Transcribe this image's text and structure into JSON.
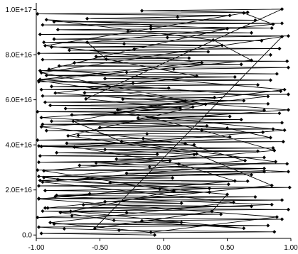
{
  "chart_data": {
    "type": "line",
    "title": "",
    "xlabel": "",
    "ylabel": "",
    "xlim": [
      -1.0,
      1.0
    ],
    "ylim": [
      -1500000000000000.0,
      1.03e+17
    ],
    "x_ticks": [
      {
        "value": -1.0,
        "label": "-1.00"
      },
      {
        "value": -0.5,
        "label": "-0.50"
      },
      {
        "value": 0.0,
        "label": "0.00"
      },
      {
        "value": 0.5,
        "label": "0.50"
      },
      {
        "value": 1.0,
        "label": "1.00"
      }
    ],
    "y_ticks": [
      {
        "value": 0,
        "label": "0.0"
      },
      {
        "value": 2e+16,
        "label": "2.0E+16"
      },
      {
        "value": 4e+16,
        "label": "4.0E+16"
      },
      {
        "value": 6e+16,
        "label": "6.0E+16"
      },
      {
        "value": 8e+16,
        "label": "8.0E+16"
      },
      {
        "value": 1e+17,
        "label": "1.0E+17"
      }
    ],
    "grid": false,
    "legend": "none",
    "line_color": "#000000",
    "marker": "diamond",
    "series": [
      {
        "x": [
          -0.07,
          -0.96,
          0.87,
          -0.35,
          -0.78,
          -0.98,
          0.82,
          -0.86,
          0.14,
          -0.17,
          0.93,
          -0.99,
          -0.72,
          0.45,
          -0.29,
          -0.95,
          0.98,
          -0.93,
          0.69,
          -0.63,
          0.14,
          -0.46,
          0.93,
          -0.98,
          0.72,
          -0.84,
          -0.58,
          0.36,
          -0.93,
          -0.03,
          0.99,
          -0.98,
          0.51,
          -0.42,
          0.66,
          -0.83,
          0.07,
          -0.98,
          0.69,
          -0.29,
          0.79,
          -0.99,
          0.79,
          -0.11,
          -0.66,
          0.97,
          -0.98,
          0.05,
          -0.37,
          0.79,
          -0.97,
          -0.05,
          -0.84,
          0.74,
          -0.46,
          0.86,
          -0.96,
          0.24,
          -0.76,
          0.94,
          -0.99,
          -0.16,
          0.52,
          -0.67,
          -0.13,
          0.78,
          -0.92,
          0.86,
          -0.5,
          0.34,
          -0.95,
          0.93,
          -0.88,
          0.61,
          -0.2,
          0.52,
          -0.72,
          0.91,
          -0.99,
          0.79,
          -0.77,
          0.23,
          -0.89,
          0.82,
          -0.93,
          0.63,
          -0.32,
          0.4,
          -0.95,
          0.98
        ],
        "y": [
          0.0,
          700000000000000.0,
          1400000000000000.0,
          2100000000000000.0,
          2800000000000000.0,
          3500000000000000.0,
          4200000000000000.0,
          4900000000000000.0,
          5600000000000000.0,
          6300000000000000.0,
          7000000000000000.0,
          7800000000000000.0,
          8500000000000000.0,
          9200000000000000.0,
          9900000000000000.0,
          1.06e+16,
          1.13e+16,
          1.2e+16,
          1.27e+16,
          1.34e+16,
          1.41e+16,
          1.48e+16,
          1.55e+16,
          1.62e+16,
          1.69e+16,
          1.76e+16,
          1.83e+16,
          1.9e+16,
          1.97e+16,
          2.04e+16,
          2.11e+16,
          2.18e+16,
          2.25e+16,
          2.32e+16,
          2.39e+16,
          2.46e+16,
          2.53e+16,
          2.6e+16,
          2.67e+16,
          2.74e+16,
          2.81e+16,
          2.88e+16,
          2.95e+16,
          3.02e+16,
          3.09e+16,
          3.16e+16,
          3.23e+16,
          3.3e+16,
          3.37e+16,
          3.44e+16,
          3.51e+16,
          3.58e+16,
          3.65e+16,
          3.72e+16,
          3.79e+16,
          3.86e+16,
          3.93e+16,
          4e+16,
          4.07e+16,
          4.14e+16,
          4.21e+16,
          4.28e+16,
          4.35e+16,
          4.42e+16,
          4.49e+16,
          4.56e+16,
          4.63e+16,
          4.7e+16,
          4.77e+16,
          4.84e+16,
          4.91e+16,
          4.98e+16,
          5.05e+16,
          5.12e+16,
          5.19e+16,
          5.26e+16,
          5.33e+16,
          5.4e+16,
          5.47e+16,
          5.54e+16,
          5.61e+16,
          5.68e+16,
          5.75e+16,
          5.82e+16,
          5.89e+16,
          5.96e+16,
          6.03e+16,
          6.1e+16,
          6.17e+16,
          6.24e+16
        ]
      },
      {
        "x": [
          -0.62,
          0.92,
          -0.96,
          0.04,
          -0.88,
          0.74,
          -0.24,
          -0.98,
          0.84,
          -0.46,
          0.56,
          -0.92,
          0.89,
          -0.29,
          -0.97,
          0.08,
          0.98,
          -0.82,
          0.61,
          -0.7,
          0.97,
          -0.95,
          0.2,
          -0.53,
          0.84,
          -0.98,
          0.35,
          -0.74,
          0.91,
          -0.88,
          0.46,
          -0.31,
          -0.94,
          0.77,
          -0.86,
          0.03,
          0.98,
          -0.97,
          0.69,
          -0.28,
          -0.83,
          0.85,
          -0.1,
          -0.95,
          0.93,
          -0.86,
          0.72,
          -0.6,
          0.11,
          0.52,
          -0.99,
          0.66,
          -0.17,
          0.93,
          -0.61,
          0.13,
          -0.96,
          0.5,
          0.84,
          -0.98,
          0.24,
          -0.53,
          0.98,
          -0.97,
          0.36,
          -0.85,
          0.85,
          -0.81,
          -0.39,
          0.63,
          -0.73,
          0.08,
          -0.94,
          0.87,
          0.3,
          -0.36,
          0.95,
          -0.9,
          -0.23,
          0.5,
          -0.92,
          0.39,
          0.69,
          -0.98,
          0.17,
          -0.71,
          -0.33,
          0.88,
          -0.95,
          0.55,
          -0.89,
          -0.1,
          0.89,
          -0.98,
          0.56,
          0.12,
          -0.7,
          0.95,
          -0.38,
          0.82,
          -0.97,
          0.3,
          -0.93,
          -0.1,
          0.63,
          0.86,
          -0.6,
          -0.45,
          0.26,
          -0.85,
          0.98,
          -0.96,
          0.17,
          0.64,
          -0.94,
          0.5,
          0.38,
          -0.54,
          0.93,
          -0.96,
          0.33,
          -0.75,
          0.26,
          0.85,
          -0.91
        ],
        "y": [
          6.31e+16,
          6.38e+16,
          6.45e+16,
          6.52e+16,
          6.59e+16,
          6.66e+16,
          6.73e+16,
          6.8e+16,
          6.87e+16,
          6.94e+16,
          7.01e+16,
          7.08e+16,
          7.15e+16,
          7.22e+16,
          7.29e+16,
          7.36e+16,
          7.43e+16,
          7.5e+16,
          7.57e+16,
          7.64e+16,
          7.71e+16,
          7.78e+16,
          7.85e+16,
          7.92e+16,
          7.99e+16,
          8.06e+16,
          8.13e+16,
          8.2e+16,
          8.27e+16,
          8.34e+16,
          8.41e+16,
          8.48e+16,
          8.55e+16,
          8.62e+16,
          8.69e+16,
          8.76e+16,
          8.83e+16,
          8.9e+16,
          8.97e+16,
          9.04e+16,
          9.11e+16,
          9.18e+16,
          9.25e+16,
          9.32e+16,
          9.39e+16,
          9.46e+16,
          9.53e+16,
          9.6e+16,
          9.67e+16,
          9.74e+16,
          9.81e+16,
          9.88e+16,
          9.95e+16,
          1.002e+17,
          6.04e+16,
          5.63e+16,
          5.21e+16,
          4.74e+16,
          4.32e+16,
          3.95e+16,
          3.57e+16,
          3.2e+16,
          2.81e+16,
          2.42e+16,
          2.07e+16,
          1.71e+16,
          1.35e+16,
          1e+16,
          6500000000000000.0,
          3000000000000000.0,
          1.05e+16,
          1.95e+16,
          2.85e+16,
          3.75e+16,
          4.65e+16,
          5.55e+16,
          6.45e+16,
          7.35e+16,
          8.25e+16,
          9.15e+16,
          9.55e+16,
          8.65e+16,
          7.75e+16,
          6.85e+16,
          5.95e+16,
          5.05e+16,
          4.15e+16,
          3.25e+16,
          2.35e+16,
          1.45e+16,
          5500000000000000.0,
          1200000000000000.0,
          8000000000000000.0,
          1.6e+16,
          2.4e+16,
          3.15e+16,
          3.9e+16,
          4.65e+16,
          5.4e+16,
          6.15e+16,
          6.9e+16,
          7.65e+16,
          8.4e+16,
          9.15e+16,
          9.85e+16,
          9.35e+16,
          8.55e+16,
          7.8e+16,
          7.05e+16,
          6.3e+16,
          5.55e+16,
          4.8e+16,
          4.05e+16,
          3.3e+16,
          2.55e+16,
          1.8e+16,
          1.05e+16,
          3000000000000000.0,
          8.8e+16,
          7.2e+16,
          5.8e+16,
          4.4e+16,
          3.6e+16,
          2.2e+16,
          1.2e+16
        ]
      }
    ]
  }
}
